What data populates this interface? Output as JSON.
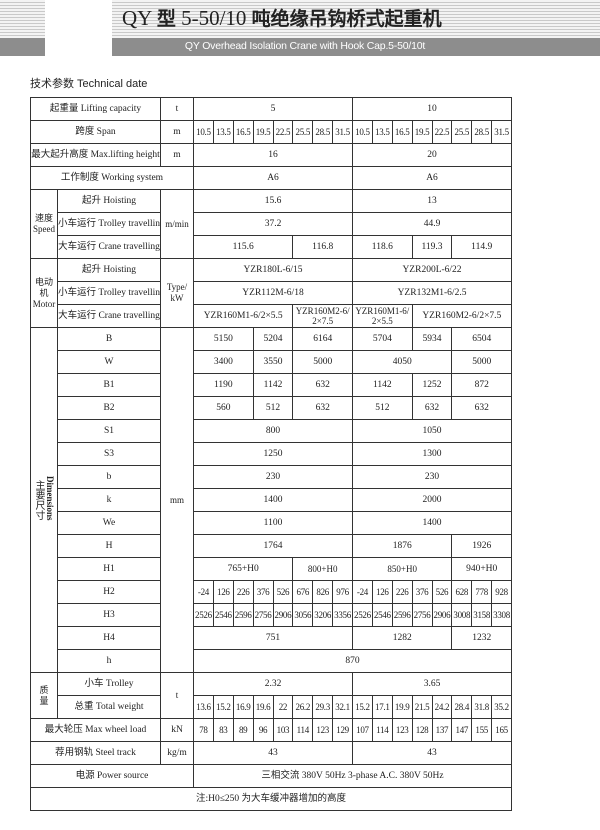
{
  "header": {
    "title_model": "QY",
    "title_type": "型",
    "title_range": "5-50/10",
    "title_name": "吨绝缘吊钩桥式起重机",
    "subtitle": "QY Overhead Isolation Crane with Hook Cap.5-50/10t"
  },
  "section_title": "技术参数 Technical date",
  "table": {
    "capacity": {
      "label": "起重量 Lifting capacity",
      "unit": "t",
      "values": [
        "5",
        "10"
      ]
    },
    "span": {
      "label": "跨度 Span",
      "unit": "m",
      "values": [
        "10.5",
        "13.5",
        "16.5",
        "19.5",
        "22.5",
        "25.5",
        "28.5",
        "31.5",
        "10.5",
        "13.5",
        "16.5",
        "19.5",
        "22.5",
        "25.5",
        "28.5",
        "31.5"
      ]
    },
    "max_height": {
      "label": "最大起升高度 Max.lifting height",
      "unit": "m",
      "values": [
        "16",
        "20"
      ]
    },
    "working": {
      "label": "工作制度 Working system",
      "values": [
        "A6",
        "A6"
      ]
    },
    "speed": {
      "group": "速度\nSpeed",
      "unit": "m/min",
      "rows": [
        {
          "label": "起升 Hoisting",
          "values": [
            "15.6",
            "13"
          ]
        },
        {
          "label": "小车运行 Trolley travelling",
          "values": [
            "37.2",
            "44.9"
          ]
        },
        {
          "label": "大车运行 Crane travelling",
          "values": [
            "115.6",
            "116.8",
            "118.6",
            "119.3",
            "114.9"
          ]
        }
      ]
    },
    "motor": {
      "group": "电动机\nMotor",
      "unit": "Type/\nkW",
      "rows": [
        {
          "label": "起升 Hoisting",
          "values": [
            "YZR180L-6/15",
            "YZR200L-6/22"
          ]
        },
        {
          "label": "小车运行 Trolley travelling",
          "values": [
            "YZR112M-6/18",
            "YZR132M1-6/2.5"
          ]
        },
        {
          "label": "大车运行 Crane travelling",
          "values": [
            "YZR160M1-6/2×5.5",
            "YZR160M2-6/ 2×7.5",
            "YZR160M1-6/ 2×5.5",
            "YZR160M2-6/2×7.5"
          ]
        }
      ]
    },
    "dimensions": {
      "group_zh": "主要尺寸",
      "group_en": "Dimensions",
      "unit": "mm",
      "rows": [
        {
          "label": "B",
          "values": [
            "5150",
            "5204",
            "6164",
            "5704",
            "5934",
            "6504"
          ]
        },
        {
          "label": "W",
          "values": [
            "3400",
            "3550",
            "5000",
            "4050",
            "5000"
          ]
        },
        {
          "label": "B1",
          "values": [
            "1190",
            "1142",
            "632",
            "1142",
            "1252",
            "872"
          ]
        },
        {
          "label": "B2",
          "values": [
            "560",
            "512",
            "632",
            "512",
            "632",
            "632"
          ]
        },
        {
          "label": "S1",
          "values": [
            "800",
            "1050"
          ]
        },
        {
          "label": "S3",
          "values": [
            "1250",
            "1300"
          ]
        },
        {
          "label": "b",
          "values": [
            "230",
            "230"
          ]
        },
        {
          "label": "k",
          "values": [
            "1400",
            "2000"
          ]
        },
        {
          "label": "We",
          "values": [
            "1100",
            "1400"
          ]
        },
        {
          "label": "H",
          "values": [
            "1764",
            "1876",
            "1926"
          ]
        },
        {
          "label": "H1",
          "values": [
            "765+H0",
            "800+H0",
            "850+H0",
            "940+H0"
          ]
        },
        {
          "label": "H2",
          "values": [
            "-24",
            "126",
            "226",
            "376",
            "526",
            "676",
            "826",
            "976",
            "-24",
            "126",
            "226",
            "376",
            "526",
            "628",
            "778",
            "928"
          ]
        },
        {
          "label": "H3",
          "values": [
            "2526",
            "2546",
            "2596",
            "2756",
            "2906",
            "3056",
            "3206",
            "3356",
            "2526",
            "2546",
            "2596",
            "2756",
            "2906",
            "3008",
            "3158",
            "3308"
          ]
        },
        {
          "label": "H4",
          "values": [
            "751",
            "1282",
            "1232"
          ]
        },
        {
          "label": "h",
          "values": [
            "870"
          ]
        }
      ]
    },
    "mass": {
      "group": "质\n量",
      "unit": "t",
      "rows": [
        {
          "label": "小车 Trolley",
          "values": [
            "2.32",
            "3.65"
          ]
        },
        {
          "label": "总重 Total weight",
          "values": [
            "13.6",
            "15.2",
            "16.9",
            "19.6",
            "22",
            "26.2",
            "29.3",
            "32.1",
            "15.2",
            "17.1",
            "19.9",
            "21.5",
            "24.2",
            "28.4",
            "31.8",
            "35.2"
          ]
        }
      ]
    },
    "wheel_load": {
      "label": "最大轮压 Max wheel load",
      "unit": "kN",
      "values": [
        "78",
        "83",
        "89",
        "96",
        "103",
        "114",
        "123",
        "129",
        "107",
        "114",
        "123",
        "128",
        "137",
        "147",
        "155",
        "165"
      ]
    },
    "steel_track": {
      "label": "荐用钢轨 Steel track",
      "unit": "kg/m",
      "values": [
        "43",
        "43"
      ]
    },
    "power": {
      "label": "电源 Power source",
      "value": "三相交流 380V 50Hz 3-phase A.C.  380V  50Hz"
    },
    "note": "注:H0≤250 为大车缓冲器增加的高度"
  }
}
